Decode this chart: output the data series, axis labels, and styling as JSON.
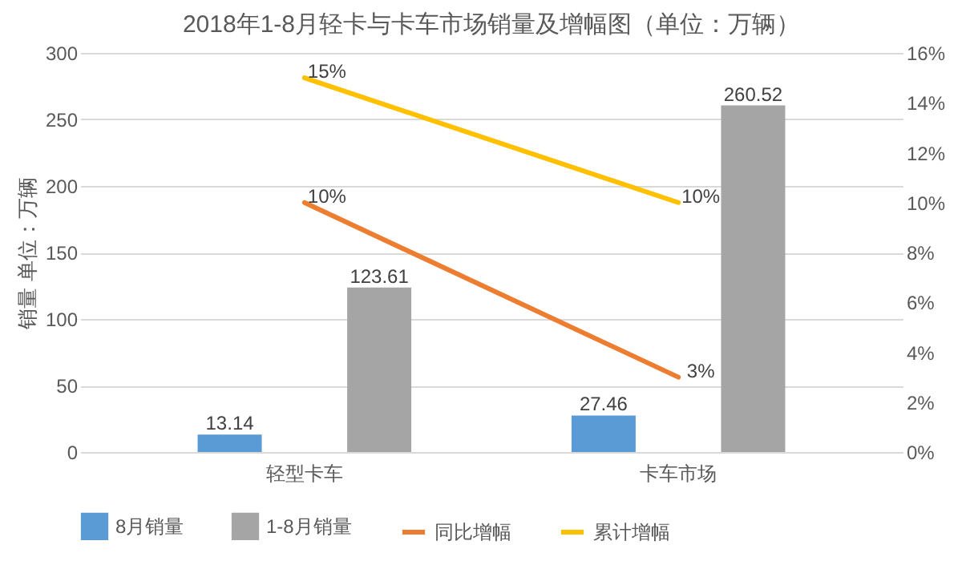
{
  "chart_data": {
    "type": "bar",
    "title": "2018年1-8月轻卡与卡车市场销量及增幅图（单位：万辆）",
    "ylabel": "销量 单位：万辆",
    "categories": [
      "轻型卡车",
      "卡车市场"
    ],
    "series": [
      {
        "name": "8月销量",
        "color": "#5b9bd5",
        "values": [
          13.14,
          27.46
        ],
        "value_labels": [
          "13.14",
          "27.46"
        ]
      },
      {
        "name": "1-8月销量",
        "color": "#a5a5a5",
        "values": [
          123.61,
          260.52
        ],
        "value_labels": [
          "123.61",
          "260.52"
        ]
      },
      {
        "name": "同比增幅",
        "type": "line",
        "axis": "y2",
        "color": "#ed7d31",
        "values": [
          10,
          3
        ],
        "value_labels": [
          "10%",
          "3%"
        ]
      },
      {
        "name": "累计增幅",
        "type": "line",
        "axis": "y2",
        "color": "#ffc000",
        "values": [
          15,
          10
        ],
        "value_labels": [
          "15%",
          "10%"
        ]
      }
    ],
    "ylim": [
      0,
      300
    ],
    "yticks": [
      0,
      50,
      100,
      150,
      200,
      250,
      300
    ],
    "y2lim": [
      0,
      16
    ],
    "y2ticks": [
      {
        "value": 0,
        "label": "0%"
      },
      {
        "value": 2,
        "label": "2%"
      },
      {
        "value": 4,
        "label": "4%"
      },
      {
        "value": 6,
        "label": "6%"
      },
      {
        "value": 8,
        "label": "8%"
      },
      {
        "value": 10,
        "label": "10%"
      },
      {
        "value": 12,
        "label": "12%"
      },
      {
        "value": 14,
        "label": "14%"
      },
      {
        "value": 16,
        "label": "16%"
      }
    ],
    "grid": "y",
    "legend": "bottom"
  }
}
